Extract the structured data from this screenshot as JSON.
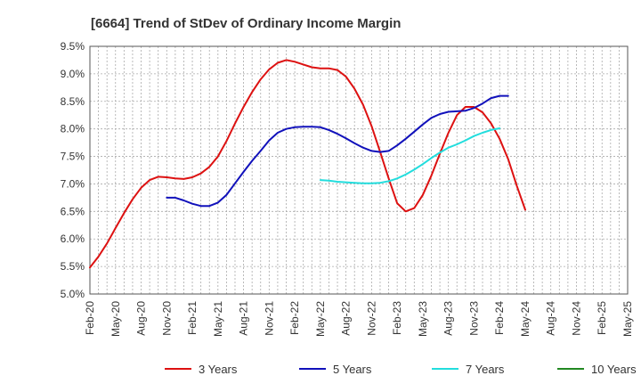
{
  "chart_data": {
    "type": "line",
    "title": "[6664]  Trend of StDev of Ordinary Income Margin",
    "xlabel": "",
    "ylabel": "",
    "ylim": [
      5.0,
      9.5
    ],
    "yticks": [
      "5.0%",
      "5.5%",
      "6.0%",
      "6.5%",
      "7.0%",
      "7.5%",
      "8.0%",
      "8.5%",
      "9.0%",
      "9.5%"
    ],
    "xticks": [
      "Feb-20",
      "May-20",
      "Aug-20",
      "Nov-20",
      "Feb-21",
      "May-21",
      "Aug-21",
      "Nov-21",
      "Feb-22",
      "May-22",
      "Aug-22",
      "Nov-22",
      "Feb-23",
      "May-23",
      "Aug-23",
      "Nov-23",
      "Feb-24",
      "May-24",
      "Aug-24",
      "Nov-24",
      "Feb-25",
      "May-25"
    ],
    "grid": true,
    "legend_position": "bottom",
    "series": [
      {
        "name": "3 Years",
        "color": "#dd1111",
        "points": [
          [
            0,
            5.48
          ],
          [
            1,
            5.68
          ],
          [
            2,
            5.92
          ],
          [
            3,
            6.2
          ],
          [
            4,
            6.47
          ],
          [
            5,
            6.72
          ],
          [
            6,
            6.93
          ],
          [
            7,
            7.07
          ],
          [
            8,
            7.13
          ],
          [
            9,
            7.12
          ],
          [
            10,
            7.1
          ],
          [
            11,
            7.09
          ],
          [
            12,
            7.12
          ],
          [
            13,
            7.19
          ],
          [
            14,
            7.31
          ],
          [
            15,
            7.5
          ],
          [
            16,
            7.78
          ],
          [
            17,
            8.1
          ],
          [
            18,
            8.4
          ],
          [
            19,
            8.67
          ],
          [
            20,
            8.9
          ],
          [
            21,
            9.08
          ],
          [
            22,
            9.2
          ],
          [
            23,
            9.25
          ],
          [
            24,
            9.22
          ],
          [
            25,
            9.17
          ],
          [
            26,
            9.12
          ],
          [
            27,
            9.1
          ],
          [
            28,
            9.1
          ],
          [
            29,
            9.07
          ],
          [
            30,
            8.95
          ],
          [
            31,
            8.73
          ],
          [
            32,
            8.44
          ],
          [
            33,
            8.05
          ],
          [
            34,
            7.58
          ],
          [
            35,
            7.1
          ],
          [
            36,
            6.65
          ],
          [
            37,
            6.5
          ],
          [
            38,
            6.56
          ],
          [
            39,
            6.8
          ],
          [
            40,
            7.15
          ],
          [
            41,
            7.55
          ],
          [
            42,
            7.93
          ],
          [
            43,
            8.25
          ],
          [
            44,
            8.4
          ],
          [
            45,
            8.4
          ],
          [
            46,
            8.3
          ],
          [
            47,
            8.1
          ],
          [
            48,
            7.82
          ],
          [
            49,
            7.45
          ],
          [
            50,
            6.97
          ],
          [
            51,
            6.53
          ]
        ]
      },
      {
        "name": "5 Years",
        "color": "#1111bb",
        "points": [
          [
            9,
            6.75
          ],
          [
            10,
            6.75
          ],
          [
            11,
            6.7
          ],
          [
            12,
            6.64
          ],
          [
            13,
            6.6
          ],
          [
            14,
            6.6
          ],
          [
            15,
            6.66
          ],
          [
            16,
            6.8
          ],
          [
            17,
            7.01
          ],
          [
            18,
            7.22
          ],
          [
            19,
            7.42
          ],
          [
            20,
            7.6
          ],
          [
            21,
            7.79
          ],
          [
            22,
            7.93
          ],
          [
            23,
            8.0
          ],
          [
            24,
            8.03
          ],
          [
            25,
            8.04
          ],
          [
            26,
            8.04
          ],
          [
            27,
            8.03
          ],
          [
            28,
            7.98
          ],
          [
            29,
            7.91
          ],
          [
            30,
            7.83
          ],
          [
            31,
            7.74
          ],
          [
            32,
            7.66
          ],
          [
            33,
            7.6
          ],
          [
            34,
            7.58
          ],
          [
            35,
            7.6
          ],
          [
            36,
            7.7
          ],
          [
            37,
            7.82
          ],
          [
            38,
            7.95
          ],
          [
            39,
            8.08
          ],
          [
            40,
            8.2
          ],
          [
            41,
            8.27
          ],
          [
            42,
            8.31
          ],
          [
            43,
            8.32
          ],
          [
            44,
            8.33
          ],
          [
            45,
            8.38
          ],
          [
            46,
            8.46
          ],
          [
            47,
            8.56
          ],
          [
            48,
            8.6
          ],
          [
            49,
            8.6
          ]
        ]
      },
      {
        "name": "7 Years",
        "color": "#22dddd",
        "points": [
          [
            27,
            7.07
          ],
          [
            28,
            7.06
          ],
          [
            29,
            7.04
          ],
          [
            30,
            7.03
          ],
          [
            31,
            7.02
          ],
          [
            32,
            7.01
          ],
          [
            33,
            7.01
          ],
          [
            34,
            7.02
          ],
          [
            35,
            7.05
          ],
          [
            36,
            7.1
          ],
          [
            37,
            7.17
          ],
          [
            38,
            7.26
          ],
          [
            39,
            7.36
          ],
          [
            40,
            7.47
          ],
          [
            41,
            7.57
          ],
          [
            42,
            7.66
          ],
          [
            43,
            7.72
          ],
          [
            44,
            7.79
          ],
          [
            45,
            7.87
          ],
          [
            46,
            7.93
          ],
          [
            47,
            7.98
          ],
          [
            48,
            8.01
          ]
        ]
      },
      {
        "name": "10 Years",
        "color": "#228822",
        "points": []
      }
    ]
  }
}
